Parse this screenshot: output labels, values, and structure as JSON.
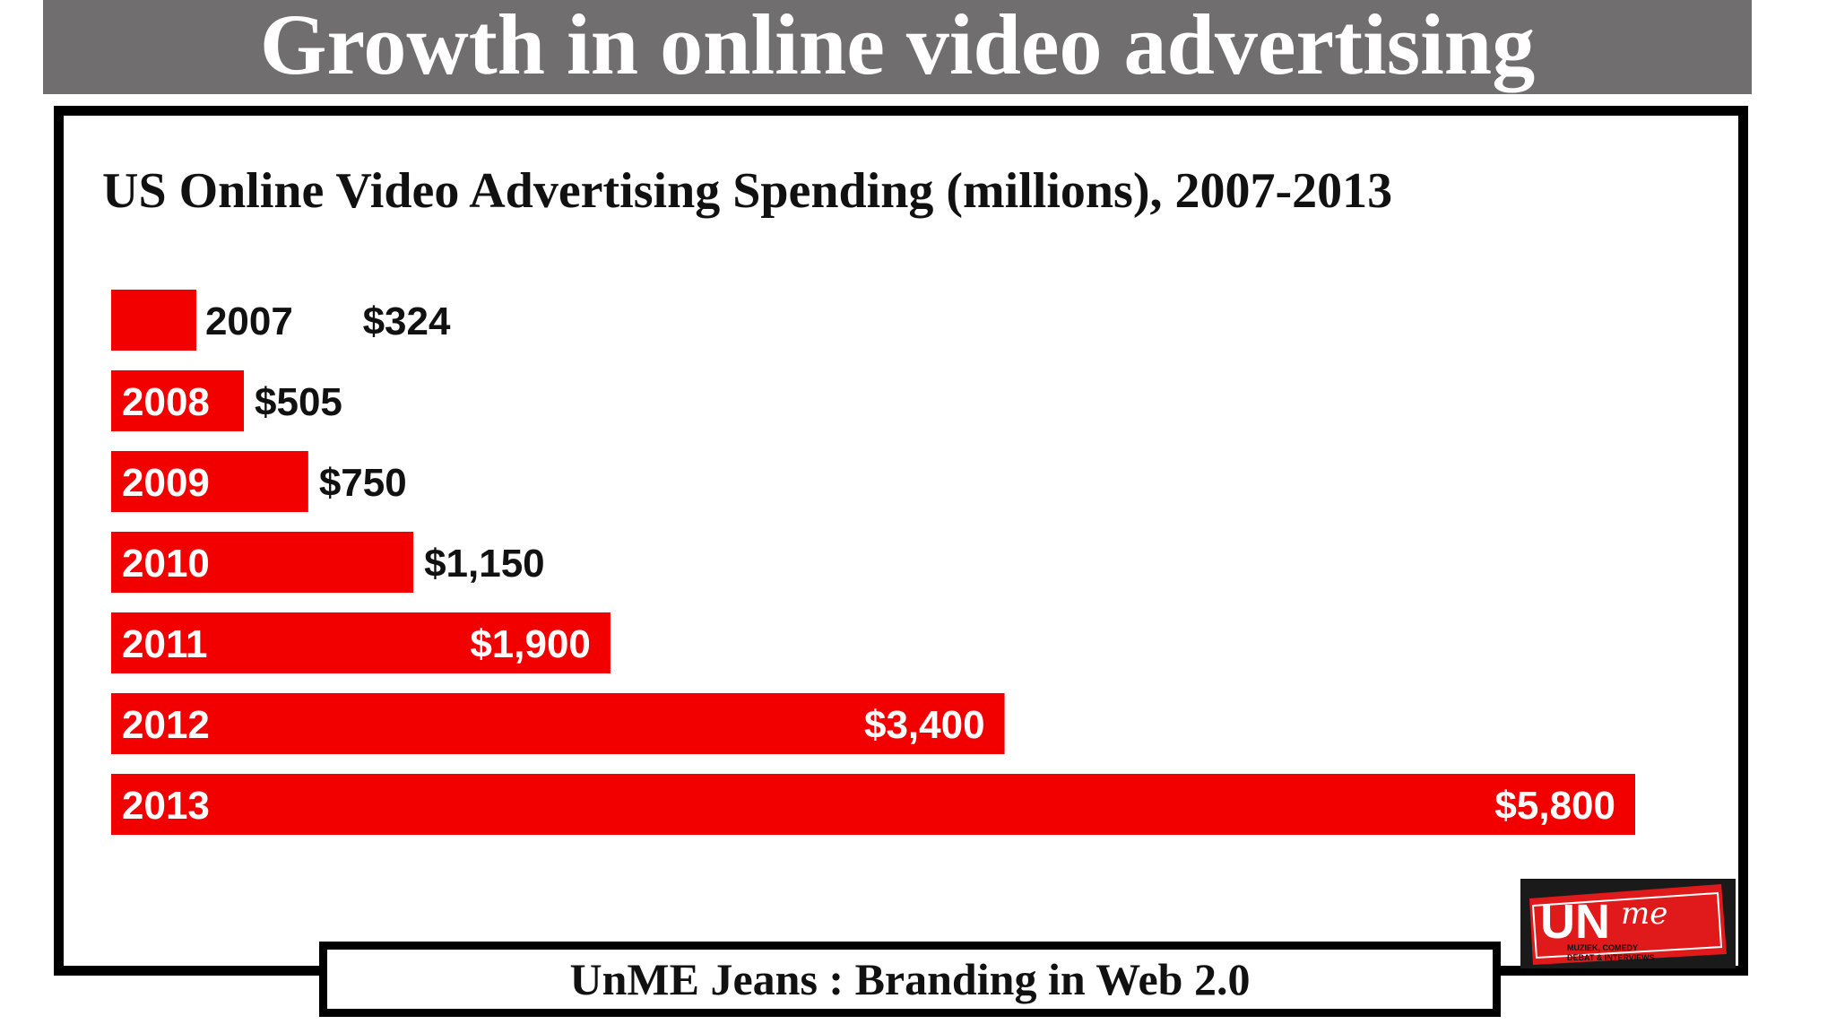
{
  "slide": {
    "title": "Growth in online video advertising",
    "footer": "UnME Jeans : Branding in Web 2.0"
  },
  "logo": {
    "text_main": "UN",
    "text_script": "me",
    "tagline_1": "MUZIEK, COMEDY",
    "tagline_2": "DEBAT & INTERVIEWS"
  },
  "colors": {
    "bar": "#f20000",
    "banner": "#716e6f",
    "frame": "#000000",
    "bar_label_inside": "#ffffff",
    "value_label": "#111111"
  },
  "chart_data": {
    "type": "bar",
    "orientation": "horizontal",
    "title": "US Online Video Advertising Spending (millions), 2007-2013",
    "categories": [
      "2007",
      "2008",
      "2009",
      "2010",
      "2011",
      "2012",
      "2013"
    ],
    "values": [
      324,
      505,
      750,
      1150,
      1900,
      3400,
      5800
    ],
    "value_labels": [
      "$324",
      "$505",
      "$750",
      "$1,150",
      "$1,900",
      "$3,400",
      "$5,800"
    ],
    "xlim": [
      0,
      5800
    ],
    "grid": false,
    "legend": "none"
  }
}
